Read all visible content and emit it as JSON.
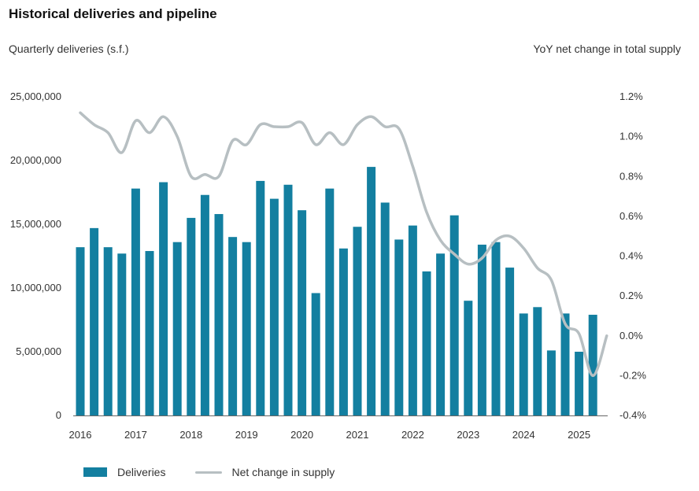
{
  "colors": {
    "bar": "#137fa0",
    "line": "#b7bfc2"
  },
  "chart_data": {
    "type": "bar",
    "title": "Historical deliveries and pipeline",
    "ylabel": "Quarterly deliveries (s.f.)",
    "y2label": "YoY net change in total supply",
    "ylim": [
      0,
      25000000
    ],
    "y2lim": [
      -0.4,
      1.2
    ],
    "yticks": [
      "25,000,000",
      "20,000,000",
      "15,000,000",
      "10,000,000",
      "5,000,000",
      "0"
    ],
    "y2ticks": [
      "1.2%",
      "1.0%",
      "0.8%",
      "0.6%",
      "0.4%",
      "0.2%",
      "0.0%",
      "-0.2%",
      "-0.4%"
    ],
    "xticks": [
      "2016",
      "2017",
      "2018",
      "2019",
      "2020",
      "2021",
      "2022",
      "2023",
      "2024",
      "2025"
    ],
    "categories": [
      "2016 Q1",
      "2016 Q2",
      "2016 Q3",
      "2016 Q4",
      "2017 Q1",
      "2017 Q2",
      "2017 Q3",
      "2017 Q4",
      "2018 Q1",
      "2018 Q2",
      "2018 Q3",
      "2018 Q4",
      "2019 Q1",
      "2019 Q2",
      "2019 Q3",
      "2019 Q4",
      "2020 Q1",
      "2020 Q2",
      "2020 Q3",
      "2020 Q4",
      "2021 Q1",
      "2021 Q2",
      "2021 Q3",
      "2021 Q4",
      "2022 Q1",
      "2022 Q2",
      "2022 Q3",
      "2022 Q4",
      "2023 Q1",
      "2023 Q2",
      "2023 Q3",
      "2023 Q4",
      "2024 Q1",
      "2024 Q2",
      "2024 Q3",
      "2024 Q4",
      "2025 Q1",
      "2025 Q2",
      "2025 Q3"
    ],
    "series": [
      {
        "name": "Deliveries",
        "type": "bar",
        "axis": "left",
        "values": [
          13200000,
          14700000,
          13200000,
          12700000,
          17800000,
          12900000,
          18300000,
          13600000,
          15500000,
          17300000,
          15800000,
          14000000,
          13600000,
          18400000,
          17000000,
          18100000,
          16100000,
          9600000,
          17800000,
          13100000,
          14800000,
          19500000,
          16700000,
          13800000,
          14900000,
          11300000,
          12700000,
          15700000,
          9000000,
          13400000,
          13600000,
          11600000,
          8000000,
          8500000,
          5100000,
          8000000,
          5000000,
          7900000,
          null
        ]
      },
      {
        "name": "Net change in supply",
        "type": "line",
        "axis": "right",
        "values": [
          1.12,
          1.06,
          1.02,
          0.92,
          1.08,
          1.02,
          1.1,
          1.0,
          0.8,
          0.81,
          0.8,
          0.98,
          0.96,
          1.06,
          1.05,
          1.05,
          1.07,
          0.96,
          1.02,
          0.96,
          1.06,
          1.1,
          1.05,
          1.04,
          0.85,
          0.62,
          0.48,
          0.41,
          0.36,
          0.39,
          0.48,
          0.5,
          0.44,
          0.34,
          0.28,
          0.06,
          0.01,
          -0.2,
          0.0
        ]
      }
    ],
    "legend": [
      "Deliveries",
      "Net change in supply"
    ]
  }
}
